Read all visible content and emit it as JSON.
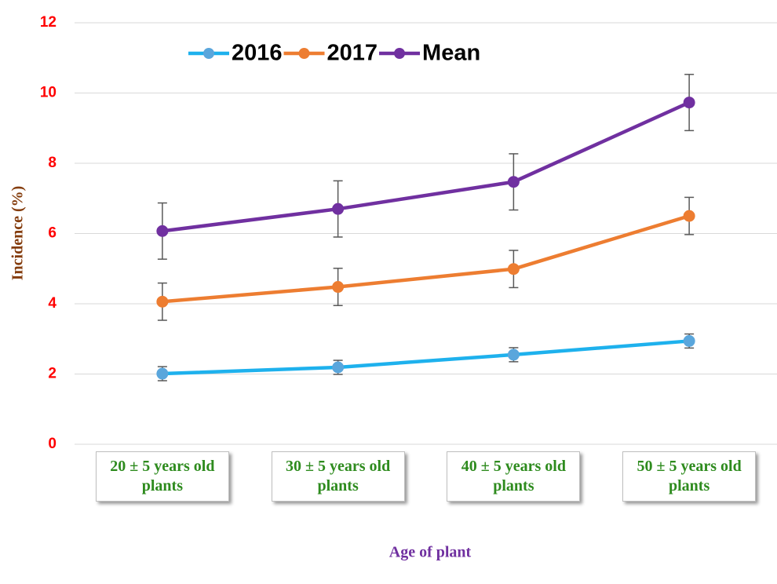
{
  "chart_data": {
    "type": "line",
    "x_label": "Age of plant",
    "y_label": "Incidence (%)",
    "categories": [
      "20 ± 5 years old plants",
      "30 ± 5 years old plants",
      "40 ± 5 years old plants",
      "50 ± 5 years old plants"
    ],
    "series": [
      {
        "name": "2016",
        "color": "#1eb1ed",
        "marker_color": "#5aa6dc",
        "values": [
          2.01,
          2.19,
          2.55,
          2.94
        ],
        "errors": [
          0.2,
          0.2,
          0.2,
          0.2
        ]
      },
      {
        "name": "2017",
        "color": "#ed7d31",
        "marker_color": "#ed7d31",
        "values": [
          4.06,
          4.48,
          4.99,
          6.5
        ],
        "errors": [
          0.53,
          0.53,
          0.53,
          0.53
        ]
      },
      {
        "name": "Mean",
        "color": "#7030a0",
        "marker_color": "#7030a0",
        "values": [
          6.07,
          6.7,
          7.47,
          9.73
        ],
        "errors": [
          0.8,
          0.8,
          0.8,
          0.8
        ]
      }
    ],
    "ylim": [
      0,
      12
    ],
    "yticks": [
      0,
      2,
      4,
      6,
      8,
      10,
      12
    ],
    "grid": true,
    "legend": "top"
  }
}
